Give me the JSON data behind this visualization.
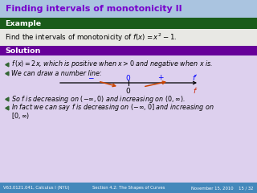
{
  "title": "Finding intervals of monotonicity II",
  "title_color": "#7700cc",
  "title_bg": "#aac4e0",
  "example_label": "Example",
  "example_bg": "#1a5c1a",
  "example_text_color": "#ffffff",
  "example_body": "Find the intervals of monotonicity of $f(x) = x^2 - 1$.",
  "example_body_bg": "#e8e8e4",
  "solution_label": "Solution",
  "solution_bg": "#660099",
  "solution_text_color": "#ffffff",
  "solution_body_bg": "#ddd0ee",
  "bullet1": "$f\\,(x) = 2x$, which is positive when $x > 0$ and negative when $x$ is.",
  "bullet2": "We can draw a number line:",
  "bullet3": "So $f$ is decreasing on $(-\\infty, 0)$ and increasing on $(0, \\infty)$.",
  "bullet4": "In fact we can say $f$ is decreasing on $(-\\infty, 0]$ and increasing on",
  "bullet4b": "$[0, \\infty)$",
  "footer_left": "V63.0121.041, Calculus I (NYU)",
  "footer_mid": "Section 4.2: The Shapes of Curves",
  "footer_right": "November 15, 2010    15 / 32",
  "footer_bg": "#4488bb",
  "footer_text_color": "#ffffff"
}
